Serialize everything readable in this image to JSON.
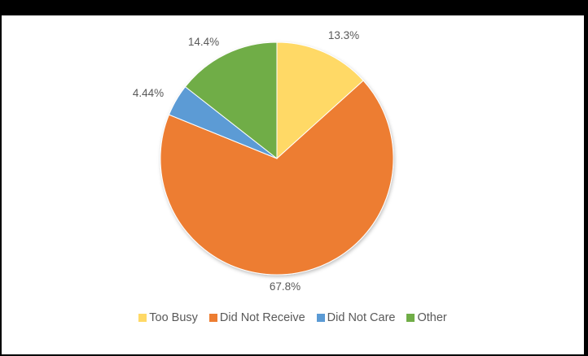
{
  "chart_data": {
    "type": "pie",
    "title": "",
    "categories": [
      "Too Busy",
      "Did Not Receive",
      "Did Not Care",
      "Other"
    ],
    "values": [
      13.3,
      67.8,
      4.44,
      14.4
    ],
    "labels": [
      "13.3%",
      "67.8%",
      "4.44%",
      "14.4%"
    ],
    "colors": [
      "#FFD966",
      "#ED7D31",
      "#5B9BD5",
      "#70AD47"
    ],
    "legend_position": "bottom",
    "start_angle_deg": 0,
    "direction": "clockwise"
  }
}
